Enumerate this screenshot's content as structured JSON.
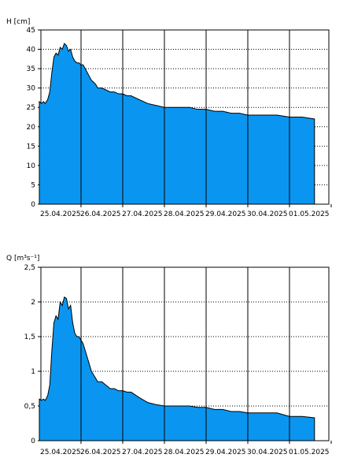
{
  "chart_data": [
    {
      "type": "area",
      "ylabel": "H [cm]",
      "ylim": [
        0,
        45
      ],
      "yticks": [
        "0",
        "5",
        "10",
        "15",
        "20",
        "25",
        "30",
        "35",
        "40",
        "45"
      ],
      "xlabels": [
        "25.04.2025",
        "26.04.2025",
        "27.04.2025",
        "28.04.2025",
        "29.04.2025",
        "30.04.2025",
        "01.05.2025"
      ],
      "grid": true,
      "fill_color": "#0a96f0",
      "x_start": 0,
      "x_end": 6.6,
      "series": [
        {
          "x": [
            0,
            0.05,
            0.1,
            0.14,
            0.2,
            0.25,
            0.3,
            0.35,
            0.4,
            0.45,
            0.5,
            0.55,
            0.6,
            0.65,
            0.7,
            0.75,
            0.8,
            0.85,
            0.9,
            0.95,
            1.0,
            1.05,
            1.1,
            1.15,
            1.2,
            1.25,
            1.3,
            1.35,
            1.4,
            1.5,
            1.6,
            1.7,
            1.8,
            1.9,
            2.0,
            2.1,
            2.2,
            2.4,
            2.6,
            2.8,
            3.0,
            3.2,
            3.4,
            3.6,
            3.8,
            4.0,
            4.2,
            4.4,
            4.6,
            4.8,
            5.0,
            5.2,
            5.5,
            5.7,
            6.0,
            6.3,
            6.6
          ],
          "y": [
            26.5,
            26,
            26.5,
            26,
            27,
            29,
            34,
            38,
            39,
            38.5,
            40.5,
            40,
            41.5,
            41,
            39.5,
            40,
            38,
            37,
            36.5,
            36.5,
            36,
            36,
            35,
            34,
            33,
            32,
            31.5,
            31,
            30,
            30,
            29.5,
            29,
            29,
            28.5,
            28.5,
            28,
            28,
            27,
            26,
            25.5,
            25,
            25,
            25,
            25,
            24.5,
            24.5,
            24,
            24,
            23.5,
            23.5,
            23,
            23,
            23,
            23,
            22.5,
            22.5,
            22
          ]
        }
      ]
    },
    {
      "type": "area",
      "ylabel": "Q [m³s⁻¹]",
      "ylim": [
        0,
        2.5
      ],
      "yticks": [
        "0",
        "0,5",
        "1",
        "1,5",
        "2",
        "2,5"
      ],
      "xlabels": [
        "25.04.2025",
        "26.04.2025",
        "27.04.2025",
        "28.04.2025",
        "29.04.2025",
        "30.04.2025",
        "01.05.2025"
      ],
      "grid": true,
      "fill_color": "#0a96f0",
      "x_start": 0,
      "x_end": 6.6,
      "series": [
        {
          "x": [
            0,
            0.05,
            0.1,
            0.14,
            0.2,
            0.25,
            0.3,
            0.35,
            0.4,
            0.45,
            0.5,
            0.55,
            0.6,
            0.65,
            0.7,
            0.75,
            0.8,
            0.85,
            0.9,
            0.95,
            1.0,
            1.05,
            1.1,
            1.15,
            1.2,
            1.25,
            1.3,
            1.35,
            1.4,
            1.5,
            1.6,
            1.7,
            1.8,
            1.9,
            2.0,
            2.1,
            2.2,
            2.4,
            2.6,
            2.8,
            3.0,
            3.2,
            3.4,
            3.6,
            3.8,
            4.0,
            4.2,
            4.4,
            4.6,
            4.8,
            5.0,
            5.2,
            5.5,
            5.7,
            6.0,
            6.3,
            6.6
          ],
          "y": [
            0.6,
            0.58,
            0.6,
            0.58,
            0.65,
            0.8,
            1.3,
            1.7,
            1.8,
            1.75,
            2.0,
            1.95,
            2.07,
            2.05,
            1.9,
            1.95,
            1.7,
            1.55,
            1.5,
            1.5,
            1.45,
            1.4,
            1.3,
            1.2,
            1.1,
            1.0,
            0.95,
            0.9,
            0.85,
            0.85,
            0.8,
            0.75,
            0.75,
            0.72,
            0.72,
            0.7,
            0.7,
            0.62,
            0.55,
            0.52,
            0.5,
            0.5,
            0.5,
            0.5,
            0.48,
            0.48,
            0.45,
            0.45,
            0.42,
            0.42,
            0.4,
            0.4,
            0.4,
            0.4,
            0.35,
            0.35,
            0.33
          ]
        }
      ]
    }
  ]
}
